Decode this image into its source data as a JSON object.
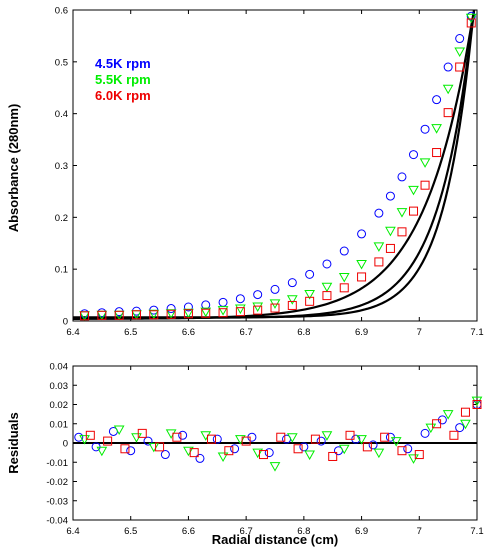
{
  "chart_data": [
    {
      "type": "scatter",
      "ylabel": "Absorbance (280nm)",
      "xlabel": "",
      "xlim": [
        6.4,
        7.1
      ],
      "ylim": [
        0,
        0.6
      ],
      "xticks": [
        "6.4",
        "6.5",
        "6.6",
        "6.7",
        "6.8",
        "6.9",
        "7",
        "7.1"
      ],
      "yticks": [
        "0",
        "0.1",
        "0.2",
        "0.3",
        "0.4",
        "0.5",
        "0.6"
      ],
      "legend_position": "top-left",
      "series": [
        {
          "name": "4.5K rpm",
          "color": "#0000ff",
          "marker": "circle",
          "fit": {
            "c0": 0.004,
            "a": 0.6,
            "k": 11.9,
            "r_end": 7.095
          },
          "x": [
            6.42,
            6.45,
            6.48,
            6.51,
            6.54,
            6.57,
            6.6,
            6.63,
            6.66,
            6.69,
            6.72,
            6.75,
            6.78,
            6.81,
            6.84,
            6.87,
            6.9,
            6.93,
            6.95,
            6.97,
            6.99,
            7.01,
            7.03,
            7.05,
            7.07,
            7.09
          ],
          "y": [
            0.014,
            0.016,
            0.018,
            0.019,
            0.021,
            0.024,
            0.027,
            0.031,
            0.036,
            0.043,
            0.051,
            0.061,
            0.074,
            0.09,
            0.11,
            0.135,
            0.168,
            0.208,
            0.241,
            0.278,
            0.321,
            0.37,
            0.427,
            0.49,
            0.545,
            0.588
          ]
        },
        {
          "name": "5.5K rpm",
          "color": "#00ee00",
          "marker": "triangle-down",
          "fit": {
            "c0": 0.006,
            "a": 0.6,
            "k": 16.4,
            "r_end": 7.095
          },
          "x": [
            6.42,
            6.45,
            6.48,
            6.51,
            6.54,
            6.57,
            6.6,
            6.63,
            6.66,
            6.69,
            6.72,
            6.75,
            6.78,
            6.81,
            6.84,
            6.87,
            6.9,
            6.93,
            6.95,
            6.97,
            6.99,
            7.01,
            7.03,
            7.05,
            7.07,
            7.09
          ],
          "y": [
            0.011,
            0.012,
            0.012,
            0.013,
            0.014,
            0.015,
            0.016,
            0.018,
            0.021,
            0.024,
            0.028,
            0.034,
            0.042,
            0.052,
            0.066,
            0.085,
            0.11,
            0.144,
            0.174,
            0.21,
            0.253,
            0.306,
            0.372,
            0.448,
            0.52,
            0.585
          ]
        },
        {
          "name": "6.0K rpm",
          "color": "#ee0000",
          "marker": "square",
          "fit": {
            "c0": 0.007,
            "a": 0.6,
            "k": 19.4,
            "r_end": 7.095
          },
          "x": [
            6.42,
            6.45,
            6.48,
            6.51,
            6.54,
            6.57,
            6.6,
            6.63,
            6.66,
            6.69,
            6.72,
            6.75,
            6.78,
            6.81,
            6.84,
            6.87,
            6.9,
            6.93,
            6.95,
            6.97,
            6.99,
            7.01,
            7.03,
            7.05,
            7.07,
            7.09
          ],
          "y": [
            0.01,
            0.011,
            0.011,
            0.012,
            0.012,
            0.013,
            0.014,
            0.015,
            0.016,
            0.018,
            0.021,
            0.025,
            0.03,
            0.038,
            0.049,
            0.064,
            0.085,
            0.114,
            0.14,
            0.172,
            0.212,
            0.262,
            0.325,
            0.402,
            0.49,
            0.575
          ]
        }
      ]
    },
    {
      "type": "scatter",
      "ylabel": "Residuals",
      "xlabel": "Radial distance  (cm)",
      "xlim": [
        6.4,
        7.1
      ],
      "ylim": [
        -0.04,
        0.04
      ],
      "xticks": [
        "6.4",
        "6.5",
        "6.6",
        "6.7",
        "6.8",
        "6.9",
        "7",
        "7.1"
      ],
      "yticks": [
        "0.04",
        "0.03",
        "0.02",
        "0.01",
        "0",
        "-0.01",
        "-0.02",
        "-0.03",
        "-0.04"
      ],
      "zero_line": true,
      "series": [
        {
          "name": "4.5K rpm",
          "color": "#0000ff",
          "marker": "circle",
          "x": [
            6.41,
            6.44,
            6.47,
            6.5,
            6.53,
            6.56,
            6.59,
            6.62,
            6.65,
            6.68,
            6.71,
            6.74,
            6.77,
            6.8,
            6.83,
            6.86,
            6.89,
            6.92,
            6.95,
            6.98,
            7.01,
            7.04,
            7.07,
            7.1
          ],
          "y": [
            0.003,
            -0.002,
            0.006,
            -0.004,
            0.001,
            -0.006,
            0.004,
            -0.008,
            0.002,
            -0.003,
            0.003,
            -0.005,
            0.002,
            -0.002,
            0.001,
            -0.004,
            0.002,
            -0.001,
            0.003,
            -0.003,
            0.005,
            0.012,
            0.008,
            0.02
          ]
        },
        {
          "name": "5.5K rpm",
          "color": "#00ee00",
          "marker": "triangle-down",
          "x": [
            6.42,
            6.45,
            6.48,
            6.51,
            6.54,
            6.57,
            6.6,
            6.63,
            6.66,
            6.69,
            6.72,
            6.75,
            6.78,
            6.81,
            6.84,
            6.87,
            6.9,
            6.93,
            6.96,
            6.99,
            7.02,
            7.05,
            7.08,
            7.1
          ],
          "y": [
            0.002,
            -0.004,
            0.007,
            0.003,
            -0.002,
            0.005,
            -0.004,
            0.004,
            -0.007,
            0.002,
            -0.005,
            -0.012,
            0.003,
            -0.006,
            0.004,
            -0.003,
            0.002,
            -0.005,
            0.001,
            -0.008,
            0.008,
            0.015,
            0.01,
            0.022
          ]
        },
        {
          "name": "6.0K rpm",
          "color": "#ee0000",
          "marker": "square",
          "x": [
            6.43,
            6.46,
            6.49,
            6.52,
            6.55,
            6.58,
            6.61,
            6.64,
            6.67,
            6.7,
            6.73,
            6.76,
            6.79,
            6.82,
            6.85,
            6.88,
            6.91,
            6.94,
            6.97,
            7.0,
            7.03,
            7.06,
            7.08,
            7.1
          ],
          "y": [
            0.004,
            0.001,
            -0.003,
            0.005,
            -0.002,
            0.003,
            -0.005,
            0.002,
            -0.004,
            0.001,
            -0.006,
            0.003,
            -0.003,
            0.002,
            -0.007,
            0.004,
            -0.002,
            0.003,
            -0.004,
            -0.006,
            0.01,
            0.004,
            0.016,
            0.02
          ]
        }
      ]
    }
  ]
}
